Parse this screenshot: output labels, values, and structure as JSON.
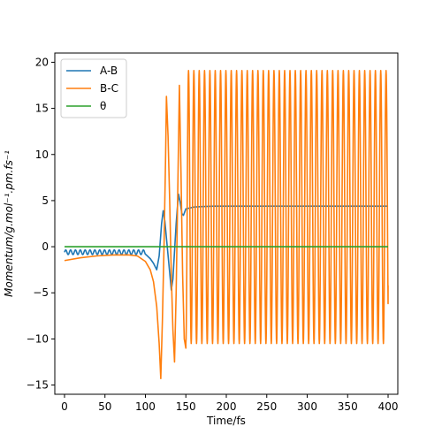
{
  "chart_data": {
    "type": "line",
    "title": "",
    "xlabel": "Time/fs",
    "ylabel": "Momentum/g.mol⁻¹.pm.fs⁻¹",
    "xlim": [
      -12,
      412
    ],
    "ylim": [
      -16,
      21
    ],
    "xticks": [
      0,
      50,
      100,
      150,
      200,
      250,
      300,
      350,
      400
    ],
    "yticks": [
      -15,
      -10,
      -5,
      0,
      5,
      10,
      15,
      20
    ],
    "grid": false,
    "legend": "top-left",
    "series": [
      {
        "name": "A-B",
        "color": "#1f77b4",
        "segments": [
          {
            "type": "osc",
            "t0": 0,
            "t1": 100,
            "center": -0.6,
            "amp": 0.25,
            "period": 6
          },
          {
            "type": "points",
            "points": [
              [
                100,
                -0.8
              ],
              [
                106,
                -1.3
              ],
              [
                110,
                -1.8
              ],
              [
                114,
                -2.5
              ],
              [
                117,
                -1.0
              ],
              [
                120,
                2.5
              ],
              [
                122,
                3.9
              ],
              [
                124,
                2.8
              ],
              [
                127,
                0.0
              ],
              [
                130,
                -2.8
              ],
              [
                132,
                -4.7
              ],
              [
                134,
                -3.5
              ],
              [
                136,
                -0.5
              ],
              [
                138,
                2.5
              ],
              [
                140,
                4.8
              ],
              [
                141,
                5.7
              ],
              [
                143,
                4.8
              ],
              [
                145,
                3.6
              ],
              [
                147,
                3.4
              ],
              [
                150,
                4.1
              ],
              [
                155,
                4.2
              ],
              [
                160,
                4.3
              ],
              [
                170,
                4.35
              ],
              [
                185,
                4.4
              ],
              [
                200,
                4.4
              ],
              [
                400,
                4.4
              ]
            ]
          }
        ]
      },
      {
        "name": "B-C",
        "color": "#ff7f0e",
        "segments": [
          {
            "type": "points",
            "points": [
              [
                0,
                -1.5
              ],
              [
                20,
                -1.2
              ],
              [
                40,
                -1.0
              ],
              [
                60,
                -0.9
              ],
              [
                80,
                -0.9
              ],
              [
                90,
                -1.0
              ],
              [
                100,
                -1.6
              ],
              [
                106,
                -2.5
              ],
              [
                110,
                -3.8
              ],
              [
                114,
                -6.5
              ],
              [
                117,
                -10.5
              ],
              [
                119,
                -14.3
              ],
              [
                121,
                -8.0
              ],
              [
                123,
                0.0
              ],
              [
                125,
                10.0
              ],
              [
                126,
                16.3
              ],
              [
                128,
                12.0
              ],
              [
                130,
                5.0
              ],
              [
                132,
                -3.0
              ],
              [
                134,
                -9.0
              ],
              [
                136,
                -12.5
              ],
              [
                138,
                -5.0
              ],
              [
                140,
                6.0
              ],
              [
                142,
                17.5
              ],
              [
                144,
                8.0
              ],
              [
                146,
                -3.0
              ],
              [
                148,
                -10.0
              ],
              [
                150,
                -11.0
              ]
            ]
          },
          {
            "type": "osc",
            "t0": 150,
            "t1": 400,
            "center": 4.3,
            "amp": 14.8,
            "period": 6.6,
            "phase": -1.5708
          },
          {
            "type": "points",
            "points": [
              [
                400,
                -4.2
              ]
            ]
          }
        ]
      },
      {
        "name": "θ",
        "color": "#2ca02c",
        "segments": [
          {
            "type": "points",
            "points": [
              [
                0,
                0
              ],
              [
                400,
                0
              ]
            ]
          }
        ]
      }
    ]
  }
}
